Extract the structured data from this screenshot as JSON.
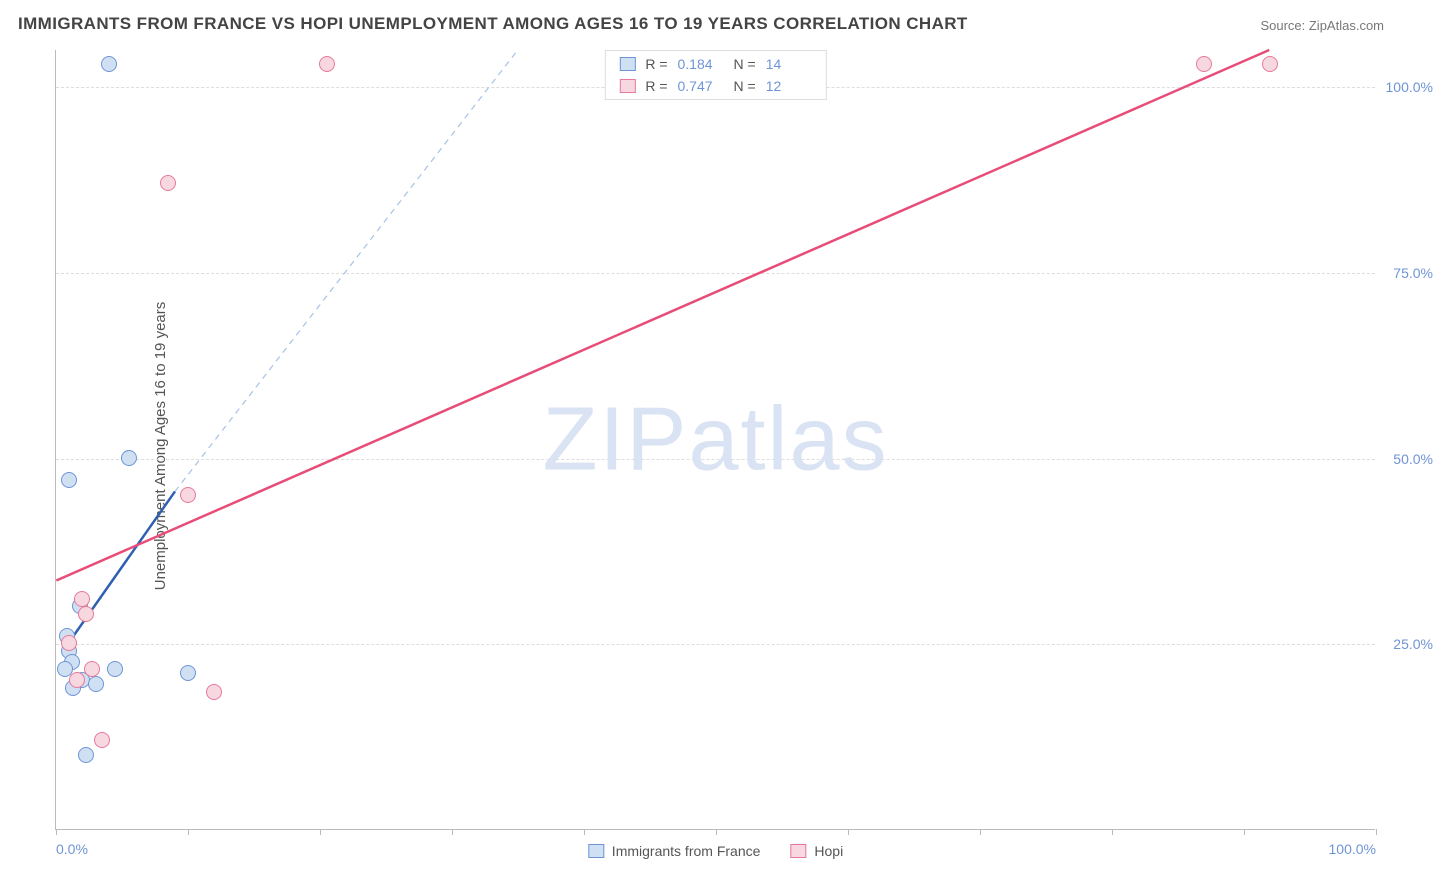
{
  "title": "IMMIGRANTS FROM FRANCE VS HOPI UNEMPLOYMENT AMONG AGES 16 TO 19 YEARS CORRELATION CHART",
  "source_label": "Source: ZipAtlas.com",
  "ylabel": "Unemployment Among Ages 16 to 19 years",
  "watermark_a": "ZIP",
  "watermark_b": "atlas",
  "chart": {
    "type": "scatter",
    "xlim": [
      0,
      100
    ],
    "ylim": [
      0,
      105
    ],
    "x_ticks": [
      0,
      10,
      20,
      30,
      40,
      50,
      60,
      70,
      80,
      90,
      100
    ],
    "y_gridlines": [
      25,
      50,
      75,
      100
    ],
    "x_tick_labels": {
      "0": "0.0%",
      "100": "100.0%"
    },
    "y_tick_labels": {
      "25": "25.0%",
      "50": "50.0%",
      "75": "75.0%",
      "100": "100.0%"
    },
    "background_color": "#ffffff",
    "axis_color": "#bbbbbb",
    "grid_color": "#dddddd",
    "label_color": "#6f94d6",
    "marker_radius": 8,
    "marker_border_width": 1.5
  },
  "series": [
    {
      "name": "Immigrants from France",
      "fill_color": "#cfe0f3",
      "stroke_color": "#6f94d6",
      "line_color": "#2f5fb0",
      "dash_color": "#a8c1e6",
      "R": "0.184",
      "N": "14",
      "points": [
        {
          "x": 4.0,
          "y": 103.0
        },
        {
          "x": 5.5,
          "y": 50.0
        },
        {
          "x": 1.0,
          "y": 47.0
        },
        {
          "x": 1.8,
          "y": 30.0
        },
        {
          "x": 0.8,
          "y": 26.0
        },
        {
          "x": 1.0,
          "y": 24.0
        },
        {
          "x": 1.2,
          "y": 22.5
        },
        {
          "x": 0.7,
          "y": 21.5
        },
        {
          "x": 4.5,
          "y": 21.5
        },
        {
          "x": 2.0,
          "y": 20.0
        },
        {
          "x": 10.0,
          "y": 21.0
        },
        {
          "x": 1.3,
          "y": 19.0
        },
        {
          "x": 3.0,
          "y": 19.5
        },
        {
          "x": 2.3,
          "y": 10.0
        }
      ],
      "trend_solid": {
        "x1": 0.5,
        "y1": 24.0,
        "x2": 9.0,
        "y2": 45.5
      },
      "trend_dash": {
        "x1": 9.0,
        "y1": 45.5,
        "x2": 35.0,
        "y2": 105.0
      }
    },
    {
      "name": "Hopi",
      "fill_color": "#f7d7e0",
      "stroke_color": "#e67a9a",
      "line_color": "#e84c78",
      "R": "0.747",
      "N": "12",
      "points": [
        {
          "x": 20.5,
          "y": 103.0
        },
        {
          "x": 87.0,
          "y": 103.0
        },
        {
          "x": 92.0,
          "y": 103.0
        },
        {
          "x": 8.5,
          "y": 87.0
        },
        {
          "x": 10.0,
          "y": 45.0
        },
        {
          "x": 2.0,
          "y": 31.0
        },
        {
          "x": 2.3,
          "y": 29.0
        },
        {
          "x": 1.0,
          "y": 25.0
        },
        {
          "x": 2.7,
          "y": 21.5
        },
        {
          "x": 1.6,
          "y": 20.0
        },
        {
          "x": 12.0,
          "y": 18.5
        },
        {
          "x": 3.5,
          "y": 12.0
        }
      ],
      "trend_solid": {
        "x1": 0.0,
        "y1": 33.5,
        "x2": 92.0,
        "y2": 105.0
      },
      "trend_dash": null
    }
  ],
  "legend_top": {
    "r_label": "R =",
    "n_label": "N ="
  },
  "legend_bottom": {
    "series1_label": "Immigrants from France",
    "series2_label": "Hopi"
  }
}
